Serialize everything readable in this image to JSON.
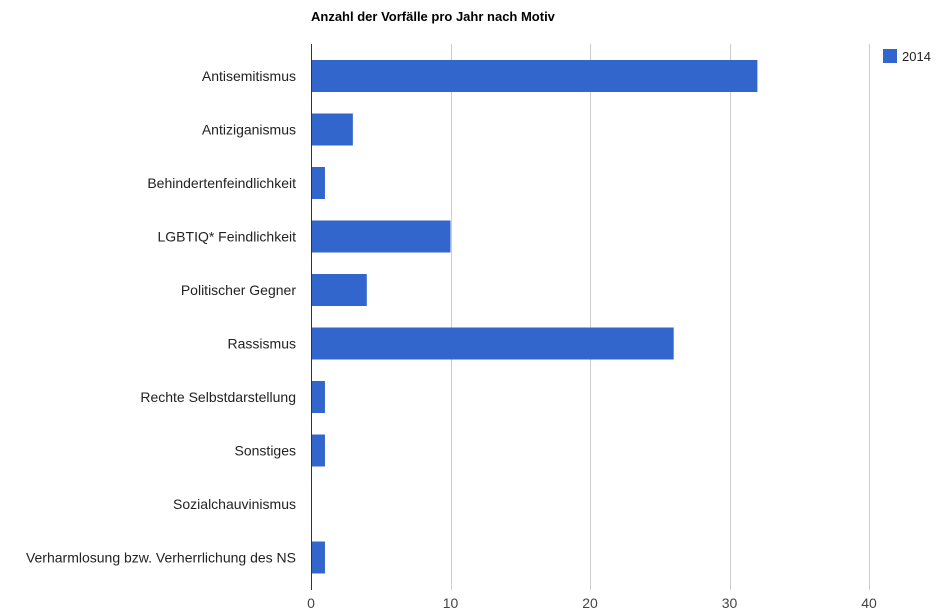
{
  "chart_data": {
    "type": "bar",
    "orientation": "horizontal",
    "title": "Anzahl der Vorfälle pro Jahr nach Motiv",
    "categories": [
      "Antisemitismus",
      "Antiziganismus",
      "Behindertenfeindlichkeit",
      "LGBTIQ* Feindlichkeit",
      "Politischer Gegner",
      "Rassismus",
      "Rechte Selbstdarstellung",
      "Sonstiges",
      "Sozialchauvinismus",
      "Verharmlosung bzw. Verherrlichung des NS"
    ],
    "series": [
      {
        "name": "2014",
        "color": "#3366cc",
        "values": [
          32,
          3,
          1,
          10,
          4,
          26,
          1,
          1,
          0,
          1
        ]
      }
    ],
    "xlim": [
      0,
      40
    ],
    "xticks": [
      0,
      10,
      20,
      30,
      40
    ],
    "grid": true,
    "legend_position": "top-right"
  }
}
